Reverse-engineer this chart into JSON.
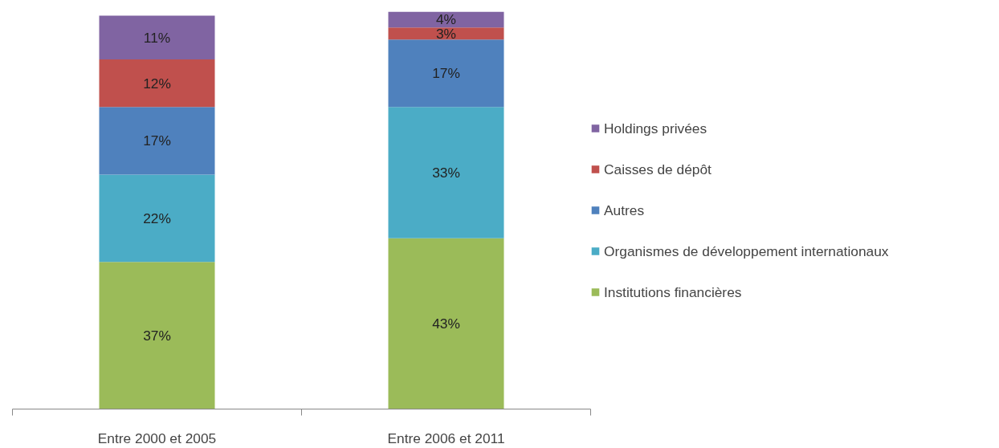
{
  "chart_data": {
    "type": "bar",
    "stacked": true,
    "legend": "right",
    "grid": false,
    "categories": [
      "Entre 2000 et 2005",
      "Entre 2006 et 2011"
    ],
    "series": [
      {
        "name": "Institutions financières",
        "color": "#9bbb59",
        "values": [
          37,
          43
        ],
        "value_labels": [
          "37%",
          "43%"
        ]
      },
      {
        "name": "Organismes de développement internationaux",
        "color": "#4bacc6",
        "values": [
          22,
          33
        ],
        "value_labels": [
          "22%",
          "33%"
        ]
      },
      {
        "name": "Autres",
        "color": "#4f81bd",
        "values": [
          17,
          17
        ],
        "value_labels": [
          "17%",
          "17%"
        ]
      },
      {
        "name": "Caisses de dépôt",
        "color": "#c0504d",
        "values": [
          12,
          3
        ],
        "value_labels": [
          "12%",
          "3%"
        ]
      },
      {
        "name": "Holdings privées",
        "color": "#8064a2",
        "values": [
          11,
          4
        ],
        "value_labels": [
          "11%",
          "4%"
        ]
      }
    ]
  }
}
